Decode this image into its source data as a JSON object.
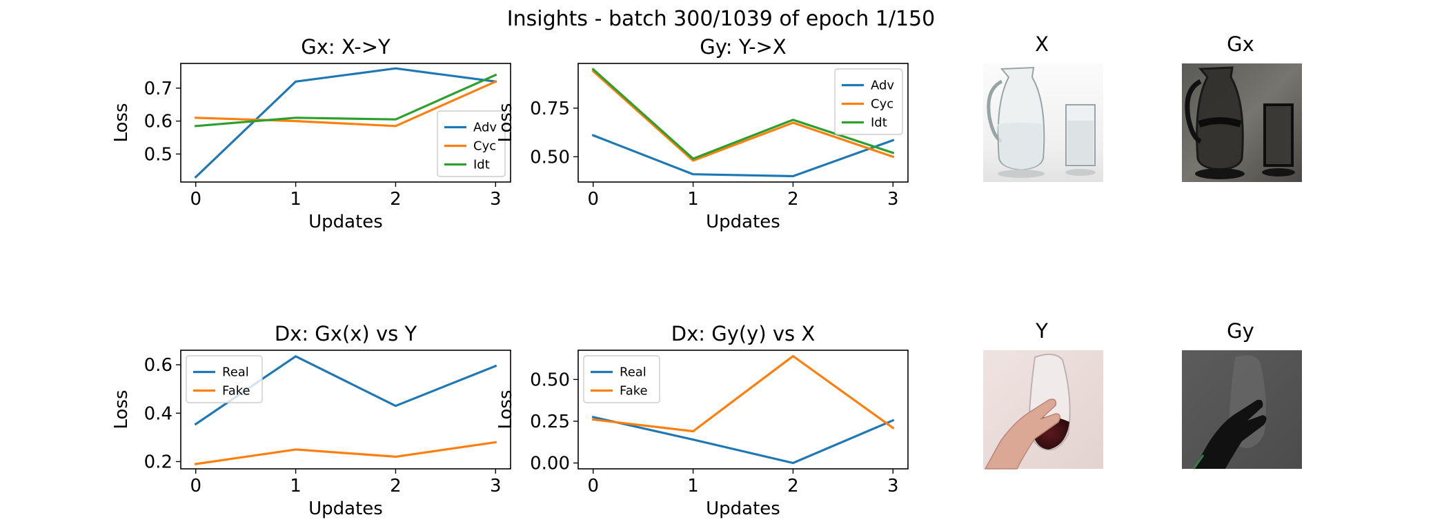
{
  "suptitle": "Insights - batch 300/1039 of epoch 1/150",
  "colors": {
    "blue": "#1f77b4",
    "orange": "#ff7f0e",
    "green": "#2ca02c"
  },
  "chart_data": [
    {
      "id": "gx",
      "type": "line",
      "title": "Gx: X->Y",
      "xlabel": "Updates",
      "ylabel": "Loss",
      "x": [
        0,
        1,
        2,
        3
      ],
      "xticks": [
        "0",
        "1",
        "2",
        "3"
      ],
      "ylim": [
        0.415,
        0.775
      ],
      "yticks": [
        0.5,
        0.6,
        0.7
      ],
      "ytick_labels": [
        "0.5",
        "0.6",
        "0.7"
      ],
      "legend": "lower-right",
      "series": [
        {
          "name": "Adv",
          "color": "#1f77b4",
          "values": [
            0.43,
            0.72,
            0.76,
            0.72
          ]
        },
        {
          "name": "Cyc",
          "color": "#ff7f0e",
          "values": [
            0.61,
            0.6,
            0.585,
            0.72
          ]
        },
        {
          "name": "Idt",
          "color": "#2ca02c",
          "values": [
            0.585,
            0.61,
            0.605,
            0.74
          ]
        }
      ]
    },
    {
      "id": "gy",
      "type": "line",
      "title": "Gy: Y->X",
      "xlabel": "Updates",
      "ylabel": "Loss",
      "x": [
        0,
        1,
        2,
        3
      ],
      "xticks": [
        "0",
        "1",
        "2",
        "3"
      ],
      "ylim": [
        0.37,
        0.98
      ],
      "yticks": [
        0.5,
        0.75
      ],
      "ytick_labels": [
        "0.50",
        "0.75"
      ],
      "legend": "upper-right",
      "series": [
        {
          "name": "Adv",
          "color": "#1f77b4",
          "values": [
            0.61,
            0.41,
            0.4,
            0.585
          ]
        },
        {
          "name": "Cyc",
          "color": "#ff7f0e",
          "values": [
            0.94,
            0.48,
            0.675,
            0.5
          ]
        },
        {
          "name": "Idt",
          "color": "#2ca02c",
          "values": [
            0.95,
            0.49,
            0.69,
            0.52
          ]
        }
      ]
    },
    {
      "id": "dx1",
      "type": "line",
      "title": "Dx: Gx(x) vs Y",
      "xlabel": "Updates",
      "ylabel": "Loss",
      "x": [
        0,
        1,
        2,
        3
      ],
      "xticks": [
        "0",
        "1",
        "2",
        "3"
      ],
      "ylim": [
        0.17,
        0.66
      ],
      "yticks": [
        0.2,
        0.4,
        0.6
      ],
      "ytick_labels": [
        "0.2",
        "0.4",
        "0.6"
      ],
      "legend": "upper-left",
      "series": [
        {
          "name": "Real",
          "color": "#1f77b4",
          "values": [
            0.355,
            0.635,
            0.43,
            0.595
          ]
        },
        {
          "name": "Fake",
          "color": "#ff7f0e",
          "values": [
            0.19,
            0.25,
            0.22,
            0.28
          ]
        }
      ]
    },
    {
      "id": "dx2",
      "type": "line",
      "title": "Dx: Gy(y) vs X",
      "xlabel": "Updates",
      "ylabel": "Loss",
      "x": [
        0,
        1,
        2,
        3
      ],
      "xticks": [
        "0",
        "1",
        "2",
        "3"
      ],
      "ylim": [
        -0.035,
        0.675
      ],
      "yticks": [
        0.0,
        0.25,
        0.5
      ],
      "ytick_labels": [
        "0.00",
        "0.25",
        "0.50"
      ],
      "legend": "upper-left",
      "series": [
        {
          "name": "Real",
          "color": "#1f77b4",
          "values": [
            0.275,
            0.14,
            0.0,
            0.255
          ]
        },
        {
          "name": "Fake",
          "color": "#ff7f0e",
          "values": [
            0.26,
            0.19,
            0.64,
            0.21
          ]
        }
      ]
    }
  ],
  "images": [
    {
      "id": "X",
      "title": "X",
      "icon": "glass-pitcher-photo"
    },
    {
      "id": "Gx",
      "title": "Gx",
      "icon": "translated-pitcher-photo"
    },
    {
      "id": "Y",
      "title": "Y",
      "icon": "hand-holding-wine-glass-photo"
    },
    {
      "id": "Gy",
      "title": "Gy",
      "icon": "translated-hand-photo"
    }
  ]
}
